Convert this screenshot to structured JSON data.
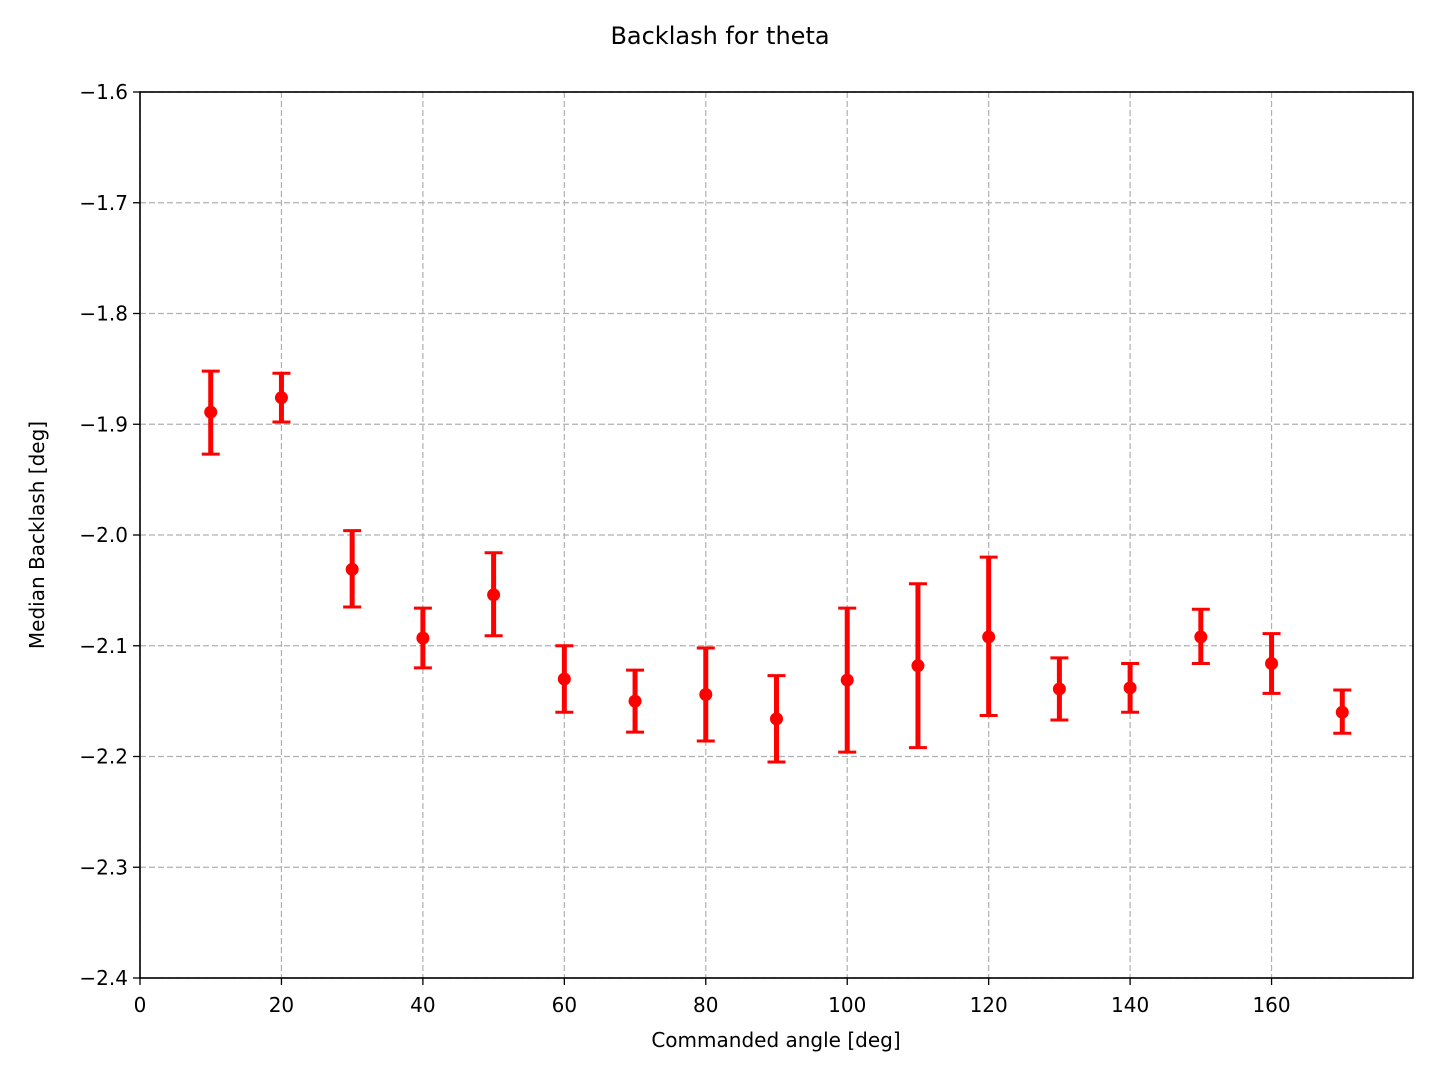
{
  "chart_data": {
    "type": "scatter",
    "title": "Backlash for theta",
    "xlabel": "Commanded angle [deg]",
    "ylabel": "Median Backlash [deg]",
    "xlim": [
      0,
      180
    ],
    "ylim": [
      -2.4,
      -1.6
    ],
    "x_ticks": [
      0,
      20,
      40,
      60,
      80,
      100,
      120,
      140,
      160
    ],
    "y_ticks": [
      -2.4,
      -2.3,
      -2.2,
      -2.1,
      -2.0,
      -1.9,
      -1.8,
      -1.7,
      -1.6
    ],
    "x_tick_labels": [
      "0",
      "20",
      "40",
      "60",
      "80",
      "100",
      "120",
      "140",
      "160"
    ],
    "y_tick_labels": [
      "−2.4",
      "−2.3",
      "−2.2",
      "−2.1",
      "−2.0",
      "−1.9",
      "−1.8",
      "−1.7",
      "−1.6"
    ],
    "grid": true,
    "color": "#ff0000",
    "grid_color": "#b0b0b0",
    "series": [
      {
        "x": [
          10,
          20,
          30,
          40,
          50,
          60,
          70,
          80,
          90,
          100,
          110,
          120,
          130,
          140,
          150,
          160,
          170
        ],
        "y": [
          -1.889,
          -1.876,
          -2.031,
          -2.093,
          -2.054,
          -2.13,
          -2.15,
          -2.144,
          -2.166,
          -2.131,
          -2.118,
          -2.092,
          -2.139,
          -2.138,
          -2.092,
          -2.116,
          -2.16
        ],
        "y_lower": [
          -1.927,
          -1.898,
          -2.065,
          -2.12,
          -2.091,
          -2.16,
          -2.178,
          -2.186,
          -2.205,
          -2.196,
          -2.192,
          -2.163,
          -2.167,
          -2.16,
          -2.116,
          -2.143,
          -2.179
        ],
        "y_upper": [
          -1.852,
          -1.854,
          -1.996,
          -2.066,
          -2.016,
          -2.1,
          -2.122,
          -2.102,
          -2.127,
          -2.066,
          -2.044,
          -2.02,
          -2.111,
          -2.116,
          -2.067,
          -2.089,
          -2.14
        ]
      }
    ]
  }
}
